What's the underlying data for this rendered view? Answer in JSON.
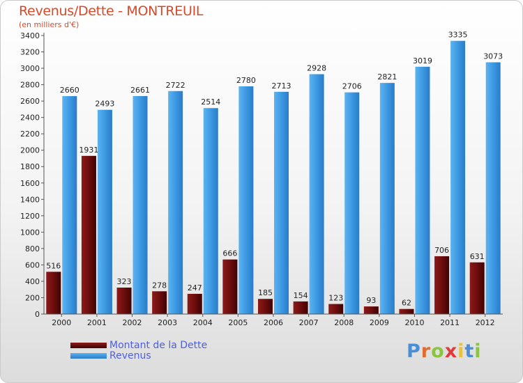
{
  "header": {
    "title": "Revenus/Dette - MONTREUIL",
    "subtitle": "(en milliers d'€)"
  },
  "logo": {
    "letters": [
      "P",
      "r",
      "o",
      "x",
      "i",
      "t",
      "i"
    ],
    "colors": [
      "#4a8fd6",
      "#e26a2c",
      "#8bc440",
      "#e03a3a",
      "#e8c23a",
      "#4a8fd6",
      "#8bc440"
    ]
  },
  "chart_data": {
    "type": "bar",
    "title": "Revenus/Dette - MONTREUIL",
    "subtitle": "(en milliers d'€)",
    "xlabel": "",
    "ylabel": "",
    "ylim": [
      0,
      3400
    ],
    "ytick_step": 200,
    "grid": false,
    "legend_position": "bottom-left",
    "categories": [
      "2000",
      "2001",
      "2002",
      "2003",
      "2004",
      "2005",
      "2006",
      "2007",
      "2008",
      "2009",
      "2010",
      "2011",
      "2012"
    ],
    "series": [
      {
        "name": "Montant de la Dette",
        "color": "#6e0d0d",
        "values": [
          516,
          1931,
          323,
          278,
          247,
          666,
          185,
          154,
          123,
          93,
          62,
          706,
          631
        ]
      },
      {
        "name": "Revenus",
        "color": "#3a96e0",
        "values": [
          2660,
          2493,
          2661,
          2722,
          2514,
          2780,
          2713,
          2928,
          2706,
          2821,
          3019,
          3335,
          3073
        ]
      }
    ]
  }
}
